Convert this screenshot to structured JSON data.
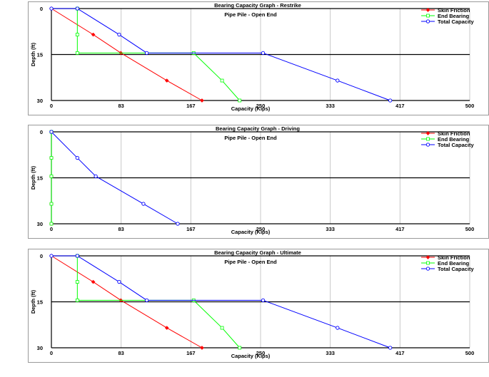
{
  "chart_data": [
    {
      "type": "line",
      "title": "Bearing Capacity Graph - Restrike",
      "subtitle": "Pipe Pile - Open End",
      "xlabel": "Capacity (Kips)",
      "ylabel": "Depth (ft)",
      "xlim": [
        0,
        500
      ],
      "ylim": [
        30,
        0
      ],
      "x_ticks": [
        "0",
        "83",
        "167",
        "250",
        "333",
        "417",
        "500"
      ],
      "y_ticks": [
        "0",
        "15",
        "30"
      ],
      "legend_position": "top-right",
      "series": [
        {
          "name": "Skin Friction",
          "color": "#ff0000",
          "marker": "diamond",
          "points": [
            [
              0,
              0
            ],
            [
              50,
              8.5
            ],
            [
              83,
              14.5
            ],
            [
              138,
              23.5
            ],
            [
              180,
              30
            ]
          ]
        },
        {
          "name": "End Bearing",
          "color": "#00ff00",
          "marker": "square",
          "points": [
            [
              31,
              0
            ],
            [
              31,
              8.5
            ],
            [
              31,
              14.5
            ],
            [
              170,
              14.5
            ],
            [
              204,
              23.5
            ],
            [
              225,
              30
            ]
          ]
        },
        {
          "name": "Total Capacity",
          "color": "#0000ff",
          "marker": "circle",
          "points": [
            [
              0,
              0
            ],
            [
              31,
              0
            ],
            [
              81,
              8.5
            ],
            [
              114,
              14.5
            ],
            [
              253,
              14.5
            ],
            [
              342,
              23.5
            ],
            [
              405,
              30
            ]
          ]
        }
      ]
    },
    {
      "type": "line",
      "title": "Bearing Capacity Graph - Driving",
      "subtitle": "Pipe Pile - Open End",
      "xlabel": "Capacity (Kips)",
      "ylabel": "Depth (ft)",
      "xlim": [
        0,
        500
      ],
      "ylim": [
        30,
        0
      ],
      "x_ticks": [
        "0",
        "83",
        "167",
        "250",
        "333",
        "417",
        "500"
      ],
      "y_ticks": [
        "0",
        "15",
        "30"
      ],
      "legend_position": "top-right",
      "series": [
        {
          "name": "Skin Friction",
          "color": "#ff0000",
          "marker": "diamond",
          "points": [
            [
              0,
              0
            ],
            [
              0,
              8.5
            ],
            [
              0,
              14.5
            ],
            [
              0,
              23.5
            ],
            [
              0,
              30
            ]
          ]
        },
        {
          "name": "End Bearing",
          "color": "#00ff00",
          "marker": "square",
          "points": [
            [
              0,
              0
            ],
            [
              0,
              8.5
            ],
            [
              0,
              14.5
            ],
            [
              0,
              23.5
            ],
            [
              0,
              30
            ]
          ]
        },
        {
          "name": "Total Capacity",
          "color": "#0000ff",
          "marker": "circle",
          "points": [
            [
              0,
              0
            ],
            [
              31,
              8.5
            ],
            [
              53,
              14.5
            ],
            [
              110,
              23.5
            ],
            [
              151,
              30
            ]
          ]
        }
      ]
    },
    {
      "type": "line",
      "title": "Bearing Capacity Graph - Ultimate",
      "subtitle": "Pipe Pile - Open End",
      "xlabel": "Capacity (Kips)",
      "ylabel": "Depth (ft)",
      "xlim": [
        0,
        500
      ],
      "ylim": [
        30,
        0
      ],
      "x_ticks": [
        "0",
        "83",
        "167",
        "250",
        "333",
        "417",
        "500"
      ],
      "y_ticks": [
        "0",
        "15",
        "30"
      ],
      "legend_position": "top-right",
      "series": [
        {
          "name": "Skin Friction",
          "color": "#ff0000",
          "marker": "diamond",
          "points": [
            [
              0,
              0
            ],
            [
              50,
              8.5
            ],
            [
              83,
              14.5
            ],
            [
              138,
              23.5
            ],
            [
              180,
              30
            ]
          ]
        },
        {
          "name": "End Bearing",
          "color": "#00ff00",
          "marker": "square",
          "points": [
            [
              31,
              0
            ],
            [
              31,
              8.5
            ],
            [
              31,
              14.5
            ],
            [
              170,
              14.5
            ],
            [
              204,
              23.5
            ],
            [
              225,
              30
            ]
          ]
        },
        {
          "name": "Total Capacity",
          "color": "#0000ff",
          "marker": "circle",
          "points": [
            [
              0,
              0
            ],
            [
              31,
              0
            ],
            [
              81,
              8.5
            ],
            [
              114,
              14.5
            ],
            [
              253,
              14.5
            ],
            [
              342,
              23.5
            ],
            [
              405,
              30
            ]
          ]
        }
      ]
    }
  ]
}
